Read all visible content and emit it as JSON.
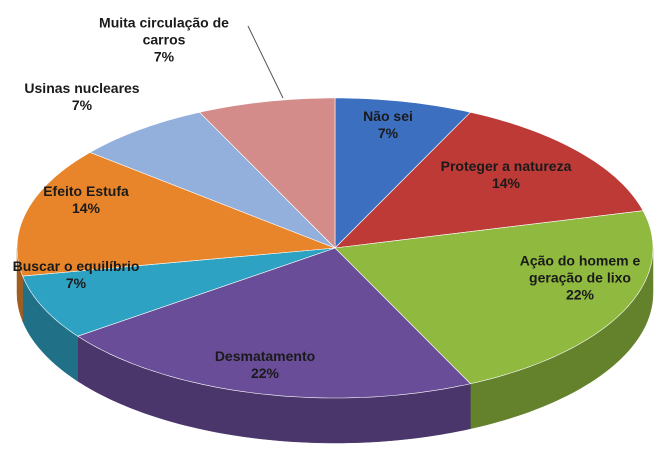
{
  "chart_data": {
    "type": "pie",
    "categories": [
      "Não sei",
      "Proteger a natureza",
      "Ação do homem e geração de lixo",
      "Desmatamento",
      "Buscar o equilíbrio",
      "Efeito Estufa",
      "Usinas nucleares",
      "Muita circulação de carros"
    ],
    "values": [
      7,
      14,
      22,
      22,
      7,
      14,
      7,
      7
    ],
    "value_labels": [
      "7%",
      "14%",
      "22%",
      "22%",
      "7%",
      "14%",
      "7%",
      "7%"
    ],
    "colors": [
      "#3d6fc1",
      "#bd3a37",
      "#8fb93f",
      "#6a4d98",
      "#2ea2c2",
      "#e8852b",
      "#93afdb",
      "#d48c8b"
    ]
  }
}
